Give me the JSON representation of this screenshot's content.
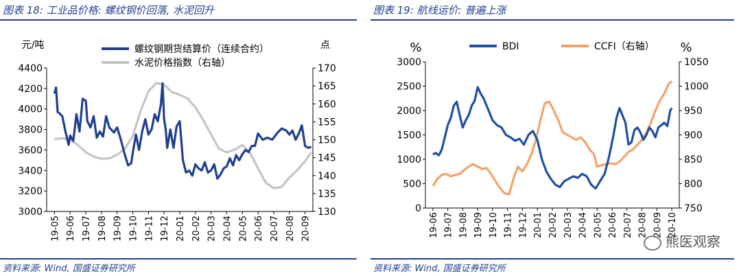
{
  "left": {
    "title": "图表 18: 工业品价格: 螺纹钢价回落, 水泥回升",
    "source": "资料来源: Wind, 国盛证券研究所",
    "chart_data": {
      "type": "line",
      "ylabel_left": "元/吨",
      "ylabel_right": "点",
      "ylim_left": [
        3000,
        4400
      ],
      "ylim_right": [
        130,
        170
      ],
      "yticks_left": [
        "3000",
        "3200",
        "3400",
        "3600",
        "3800",
        "4000",
        "4200",
        "4400"
      ],
      "yticks_right": [
        "130",
        "135",
        "140",
        "145",
        "150",
        "155",
        "160",
        "165",
        "170"
      ],
      "xticks": [
        "19-05",
        "19-06",
        "19-07",
        "19-08",
        "19-09",
        "19-10",
        "19-11",
        "19-12",
        "20-01",
        "20-02",
        "20-03",
        "20-04",
        "20-05",
        "20-06",
        "20-07",
        "20-08",
        "20-09"
      ],
      "series": [
        {
          "name": "螺纹钢期货结算价（连续合约）",
          "color": "#1f3f8f",
          "axis": "left",
          "x": [
            0,
            0.1,
            0.2,
            0.3,
            0.5,
            0.7,
            0.9,
            1.0,
            1.2,
            1.4,
            1.6,
            1.8,
            2.0,
            2.1,
            2.3,
            2.5,
            2.7,
            2.9,
            3.1,
            3.3,
            3.5,
            3.8,
            4.0,
            4.2,
            4.5,
            4.7,
            4.9,
            5.0,
            5.2,
            5.4,
            5.6,
            5.8,
            6.0,
            6.2,
            6.4,
            6.6,
            6.8,
            6.9,
            7.0,
            7.1,
            7.2,
            7.4,
            7.6,
            7.8,
            8.0,
            8.2,
            8.4,
            8.6,
            8.8,
            9.0,
            9.2,
            9.4,
            9.6,
            9.8,
            10.0,
            10.2,
            10.4,
            10.6,
            10.8,
            11.0,
            11.2,
            11.4,
            11.6,
            11.8,
            12.0,
            12.2,
            12.4,
            12.6,
            12.8,
            13.0,
            13.3,
            13.6,
            13.9,
            14.2,
            14.5,
            14.8,
            15.0,
            15.2,
            15.4,
            15.6,
            15.8,
            16.0,
            16.2,
            16.4
          ],
          "y": [
            4150,
            4210,
            3970,
            3960,
            3930,
            3780,
            3650,
            3740,
            3690,
            3950,
            3780,
            4100,
            4080,
            3880,
            3820,
            3930,
            3720,
            3780,
            3730,
            3930,
            3820,
            3770,
            3820,
            3720,
            3550,
            3450,
            3470,
            3570,
            3750,
            3600,
            3780,
            3900,
            3750,
            3800,
            3950,
            3880,
            4050,
            4250,
            3900,
            3800,
            3620,
            3800,
            3620,
            3830,
            3880,
            3500,
            3380,
            3400,
            3350,
            3460,
            3420,
            3400,
            3480,
            3380,
            3400,
            3460,
            3320,
            3360,
            3420,
            3440,
            3520,
            3450,
            3550,
            3500,
            3560,
            3600,
            3580,
            3640,
            3640,
            3760,
            3700,
            3720,
            3700,
            3760,
            3810,
            3790,
            3750,
            3790,
            3700,
            3760,
            3840,
            3640,
            3620,
            3630
          ]
        },
        {
          "name": "水泥价格指数（右轴）",
          "color": "#c4c4c4",
          "axis": "right",
          "x": [
            0,
            0.5,
            1.0,
            1.5,
            2.0,
            2.5,
            3.0,
            3.5,
            4.0,
            4.5,
            5.0,
            5.5,
            6.0,
            6.5,
            7.0,
            7.5,
            8.0,
            8.5,
            9.0,
            9.5,
            10.0,
            10.5,
            11.0,
            11.5,
            12.0,
            12.5,
            13.0,
            13.5,
            14.0,
            14.5,
            15.0,
            15.5,
            16.0,
            16.4
          ],
          "y": [
            150.2,
            150.4,
            150.0,
            148.5,
            146.5,
            145.3,
            144.7,
            144.8,
            145.8,
            147.5,
            151.0,
            158.0,
            163.5,
            165.8,
            165.3,
            163.3,
            162.5,
            161.5,
            159.0,
            155.5,
            151.5,
            147.5,
            146.5,
            147.2,
            148.5,
            146.2,
            142.0,
            138.0,
            136.5,
            136.8,
            139.5,
            141.5,
            144.0,
            146.5
          ]
        }
      ]
    }
  },
  "right": {
    "title": "图表 19: 航线运价: 普遍上涨",
    "source": "资料来源: Wind, 国盛证券研究所",
    "watermark": "熊医观察",
    "chart_data": {
      "type": "line",
      "ylabel_left": "%",
      "ylabel_right": "%",
      "ylim_left": [
        0,
        3000
      ],
      "ylim_right": [
        750,
        1050
      ],
      "yticks_left": [
        "0",
        "500",
        "1000",
        "1500",
        "2000",
        "2500",
        "3000"
      ],
      "yticks_right": [
        "750",
        "800",
        "850",
        "900",
        "950",
        "1000",
        "1050"
      ],
      "xticks": [
        "19-06",
        "19-07",
        "19-08",
        "19-09",
        "19-10",
        "19-11",
        "19-12",
        "20-01",
        "20-02",
        "20-03",
        "20-04",
        "20-05",
        "20-06",
        "20-07",
        "20-08",
        "20-09",
        "20-10"
      ],
      "series": [
        {
          "name": "BDI",
          "color": "#1f4fa0",
          "axis": "left",
          "x": [
            0,
            0.2,
            0.4,
            0.6,
            0.8,
            1.0,
            1.2,
            1.4,
            1.6,
            1.8,
            2.0,
            2.2,
            2.4,
            2.6,
            2.8,
            3.0,
            3.2,
            3.4,
            3.6,
            3.8,
            4.0,
            4.3,
            4.6,
            4.9,
            5.2,
            5.5,
            5.8,
            6.1,
            6.4,
            6.7,
            7.0,
            7.3,
            7.6,
            7.9,
            8.2,
            8.5,
            8.8,
            9.1,
            9.4,
            9.7,
            10.0,
            10.3,
            10.6,
            10.9,
            11.2,
            11.5,
            11.8,
            12.1,
            12.3,
            12.5,
            12.7,
            12.9,
            13.1,
            13.3,
            13.5,
            13.7,
            13.9,
            14.1,
            14.3,
            14.5,
            14.7,
            14.9,
            15.1,
            15.3,
            15.5,
            15.7,
            15.9,
            16.0
          ],
          "y": [
            1100,
            1130,
            1080,
            1200,
            1450,
            1700,
            1850,
            2100,
            2180,
            1900,
            1650,
            1800,
            1900,
            2100,
            2200,
            2480,
            2350,
            2250,
            2100,
            1950,
            1800,
            1700,
            1650,
            1500,
            1450,
            1380,
            1420,
            1300,
            1500,
            1580,
            1400,
            1000,
            750,
            600,
            480,
            430,
            550,
            600,
            650,
            620,
            700,
            650,
            480,
            400,
            550,
            700,
            1050,
            1500,
            1850,
            2050,
            1900,
            1750,
            1300,
            1350,
            1600,
            1650,
            1550,
            1400,
            1500,
            1650,
            1580,
            1450,
            1650,
            1700,
            1750,
            1680,
            2000,
            2050
          ]
        },
        {
          "name": "CCFI（右轴）",
          "color": "#f4a26a",
          "axis": "right",
          "x": [
            0,
            0.3,
            0.6,
            0.9,
            1.2,
            1.5,
            1.8,
            2.1,
            2.4,
            2.7,
            3.0,
            3.3,
            3.6,
            4.0,
            4.4,
            4.8,
            5.1,
            5.4,
            5.7,
            6.0,
            6.3,
            6.6,
            6.9,
            7.2,
            7.5,
            7.8,
            8.1,
            8.4,
            8.7,
            9.0,
            9.3,
            9.6,
            9.9,
            10.2,
            10.5,
            10.8,
            11.0,
            11.3,
            11.6,
            11.9,
            12.2,
            12.5,
            12.8,
            13.1,
            13.4,
            13.7,
            14.0,
            14.3,
            14.6,
            14.9,
            15.2,
            15.5,
            15.8,
            16.0
          ],
          "y": [
            795,
            810,
            818,
            820,
            815,
            818,
            820,
            828,
            835,
            840,
            835,
            830,
            832,
            815,
            795,
            780,
            778,
            810,
            835,
            825,
            840,
            860,
            890,
            930,
            965,
            968,
            950,
            930,
            905,
            900,
            895,
            890,
            895,
            885,
            870,
            860,
            835,
            838,
            840,
            842,
            840,
            845,
            855,
            865,
            870,
            880,
            890,
            905,
            925,
            950,
            970,
            985,
            1005,
            1010
          ]
        }
      ]
    }
  }
}
